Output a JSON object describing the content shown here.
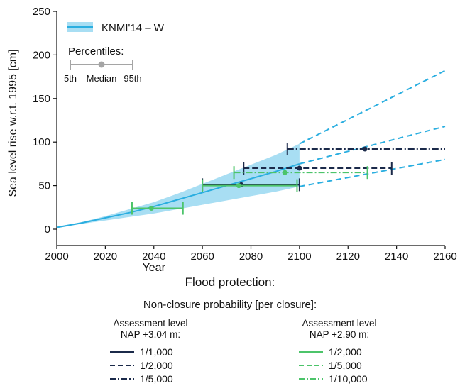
{
  "chart_data": {
    "type": "line",
    "xlabel": "Year",
    "ylabel": "Sea level rise w.r.t. 1995 [cm]",
    "xlim": [
      2000,
      2160
    ],
    "ylim": [
      0,
      250
    ],
    "xticks": [
      2000,
      2020,
      2040,
      2060,
      2080,
      2100,
      2120,
      2140,
      2160
    ],
    "yticks": [
      0,
      50,
      100,
      150,
      200,
      250
    ],
    "grid": false,
    "legend": {
      "placement": "top-left",
      "series_label": "KNMI'14 – W",
      "percentiles_title": "Percentiles:",
      "percentile_labels": [
        "5th",
        "Median",
        "95th"
      ]
    },
    "colors": {
      "navy": "#1b2a4a",
      "green": "#4cc46a",
      "blue": "#2aaee0",
      "band": "#a8def3",
      "gray": "#a5a5a5"
    },
    "median_line": {
      "name": "KNMI'14 – W",
      "x": [
        2000,
        2010,
        2020,
        2030,
        2040,
        2050,
        2060,
        2070,
        2080,
        2090,
        2100
      ],
      "y": [
        2,
        7,
        13,
        19,
        26,
        34,
        42,
        50,
        58,
        66,
        75
      ]
    },
    "band": {
      "x": [
        2000,
        2010,
        2020,
        2030,
        2040,
        2050,
        2060,
        2070,
        2080,
        2090,
        2100
      ],
      "low": [
        2,
        6,
        10,
        14,
        18,
        23,
        28,
        33,
        38,
        43,
        49
      ],
      "high": [
        3,
        8,
        15,
        23,
        31,
        41,
        52,
        63,
        74,
        85,
        98
      ]
    },
    "extrapolations": [
      {
        "x": [
          2100,
          2160
        ],
        "y": [
          98,
          182
        ]
      },
      {
        "x": [
          2100,
          2160
        ],
        "y": [
          75,
          118
        ]
      },
      {
        "x": [
          2100,
          2160
        ],
        "y": [
          49,
          80
        ]
      }
    ],
    "percentile_bars": [
      {
        "color": "navy",
        "dash": "solid",
        "p5": 2060,
        "median": 2076,
        "p95": 2100,
        "y": 51
      },
      {
        "color": "navy",
        "dash": "dashed",
        "p5": 2077,
        "median": 2100,
        "p95": 2138,
        "y": 70
      },
      {
        "color": "navy",
        "dash": "dashdot",
        "p5": 2095,
        "median": 2127,
        "p95": 2160,
        "y": 92
      },
      {
        "color": "green",
        "dash": "solid",
        "p5": 2031,
        "median": 2039,
        "p95": 2052,
        "y": 24
      },
      {
        "color": "green",
        "dash": "solid",
        "p5": 2060,
        "median": 2075,
        "p95": 2099,
        "y": 50
      },
      {
        "color": "green",
        "dash": "dashdot",
        "p5": 2073,
        "median": 2094,
        "p95": 2128,
        "y": 65
      }
    ]
  },
  "flood": {
    "title": "Flood protection:",
    "subtitle": "Non-closure probability [per closure]:",
    "left": {
      "heading1": "Assessment level",
      "heading2": "NAP +3.04 m:",
      "items": [
        "1/1,000",
        "1/2,000",
        "1/5,000"
      ]
    },
    "right": {
      "heading1": "Assessment level",
      "heading2": "NAP +2.90 m:",
      "items": [
        "1/2,000",
        "1/5,000",
        "1/10,000"
      ]
    }
  }
}
